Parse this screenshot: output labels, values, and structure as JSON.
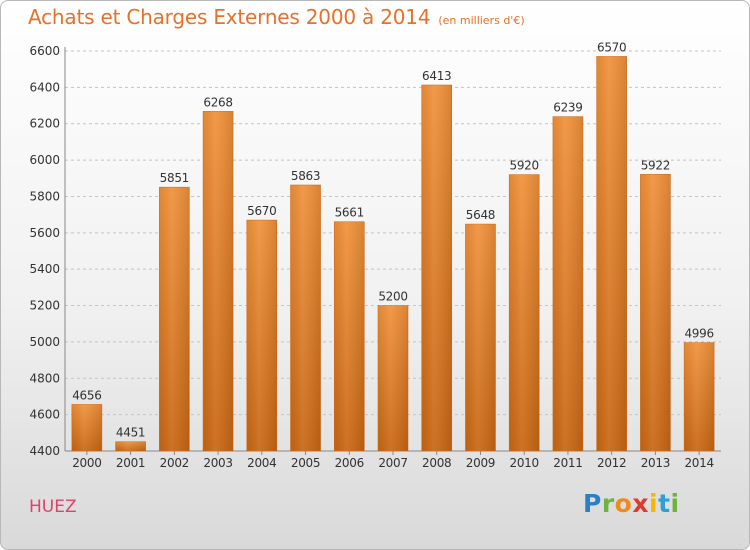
{
  "header": {
    "title": "Achats et Charges Externes 2000 à 2014",
    "unit": "(en milliers d'€)"
  },
  "footer": {
    "commune": "HUEZ",
    "brand_letters": [
      {
        "ch": "P",
        "color": "#2d7fc3"
      },
      {
        "ch": "r",
        "color": "#6db33f"
      },
      {
        "ch": "o",
        "color": "#f18a1c"
      },
      {
        "ch": "x",
        "color": "#e2382a"
      },
      {
        "ch": "i",
        "color": "#f5b800"
      },
      {
        "ch": "t",
        "color": "#2d9fd9"
      },
      {
        "ch": "i",
        "color": "#6db33f"
      }
    ]
  },
  "chart_data": {
    "type": "bar",
    "title": "Achats et Charges Externes 2000 à 2014",
    "subtitle": "(en milliers d'€)",
    "xlabel": "",
    "ylabel": "",
    "categories": [
      "2000",
      "2001",
      "2002",
      "2003",
      "2004",
      "2005",
      "2006",
      "2007",
      "2008",
      "2009",
      "2010",
      "2011",
      "2012",
      "2013",
      "2014"
    ],
    "values": [
      4656,
      4451,
      5851,
      6268,
      5670,
      5863,
      5661,
      5200,
      6413,
      5648,
      5920,
      6239,
      6570,
      5922,
      4996
    ],
    "ylim": [
      4400,
      6600
    ],
    "yticks": [
      4400,
      4600,
      4800,
      5000,
      5200,
      5400,
      5600,
      5800,
      6000,
      6200,
      6400,
      6600
    ],
    "grid": true,
    "bar_color": "#f0913a",
    "bar_color_dark": "#c86612"
  }
}
